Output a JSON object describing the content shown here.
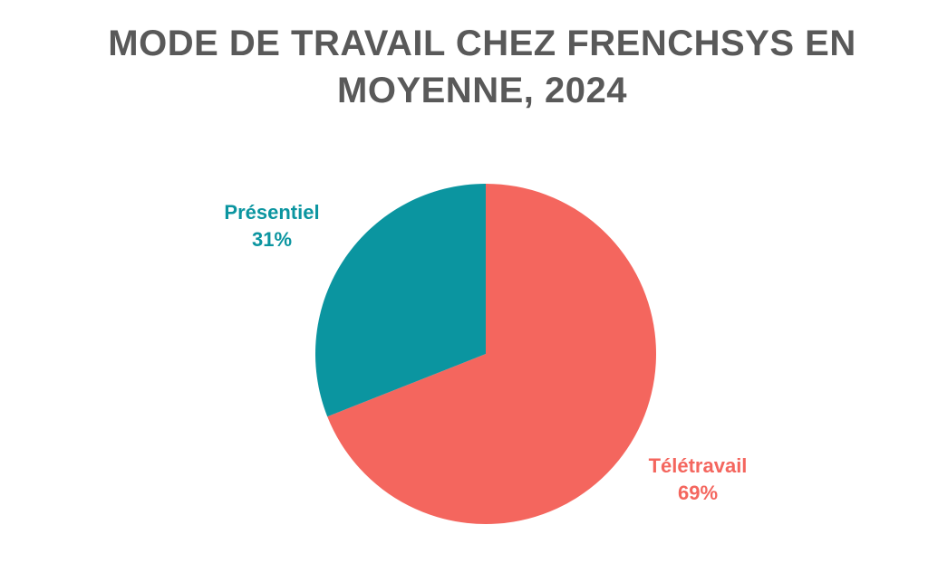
{
  "chart_data": {
    "type": "pie",
    "title": "MODE DE TRAVAIL CHEZ FRENCHSYS EN MOYENNE, 2024",
    "title_lines": [
      "MODE DE TRAVAIL CHEZ FRENCHSYS EN",
      "MOYENNE, 2024"
    ],
    "slices": [
      {
        "label": "Télétravail",
        "value": 69,
        "value_label": "69%",
        "color": "#F4665E"
      },
      {
        "label": "Présentiel",
        "value": 31,
        "value_label": "31%",
        "color": "#0B95A0"
      }
    ],
    "legend": "none"
  }
}
